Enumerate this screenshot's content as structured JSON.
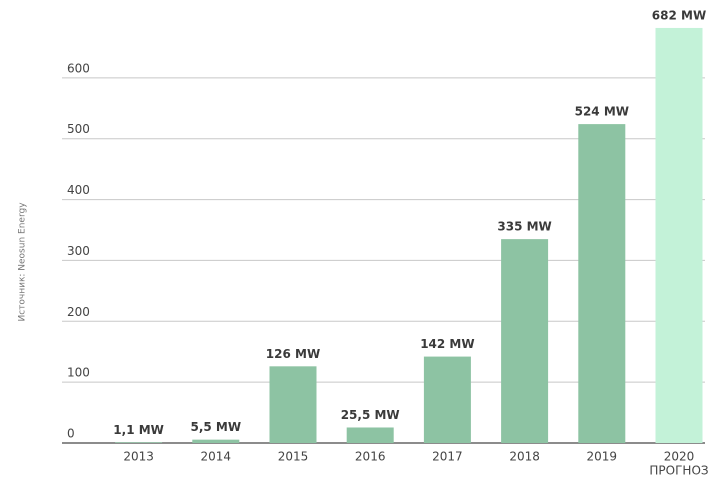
{
  "chart_data": {
    "type": "bar",
    "source": "Источник: Neosun Energy",
    "categories": [
      "2013",
      "2014",
      "2015",
      "2016",
      "2017",
      "2018",
      "2019",
      "2020"
    ],
    "category_note": "ПРОГНОЗ",
    "values": [
      1.1,
      5.5,
      126,
      25.5,
      142,
      335,
      524,
      682
    ],
    "value_labels": [
      "1,1 MW",
      "5,5 MW",
      "126 MW",
      "25,5 MW",
      "142 MW",
      "335 MW",
      "524 MW",
      "682 MW"
    ],
    "colors": [
      "#8dc3a3",
      "#8dc3a3",
      "#8dc3a3",
      "#8dc3a3",
      "#8dc3a3",
      "#8dc3a3",
      "#8dc3a3",
      "#c3f2d8"
    ],
    "ylim": [
      0,
      700
    ],
    "yticks": [
      0,
      100,
      200,
      300,
      400,
      500,
      600
    ],
    "grid": true
  }
}
